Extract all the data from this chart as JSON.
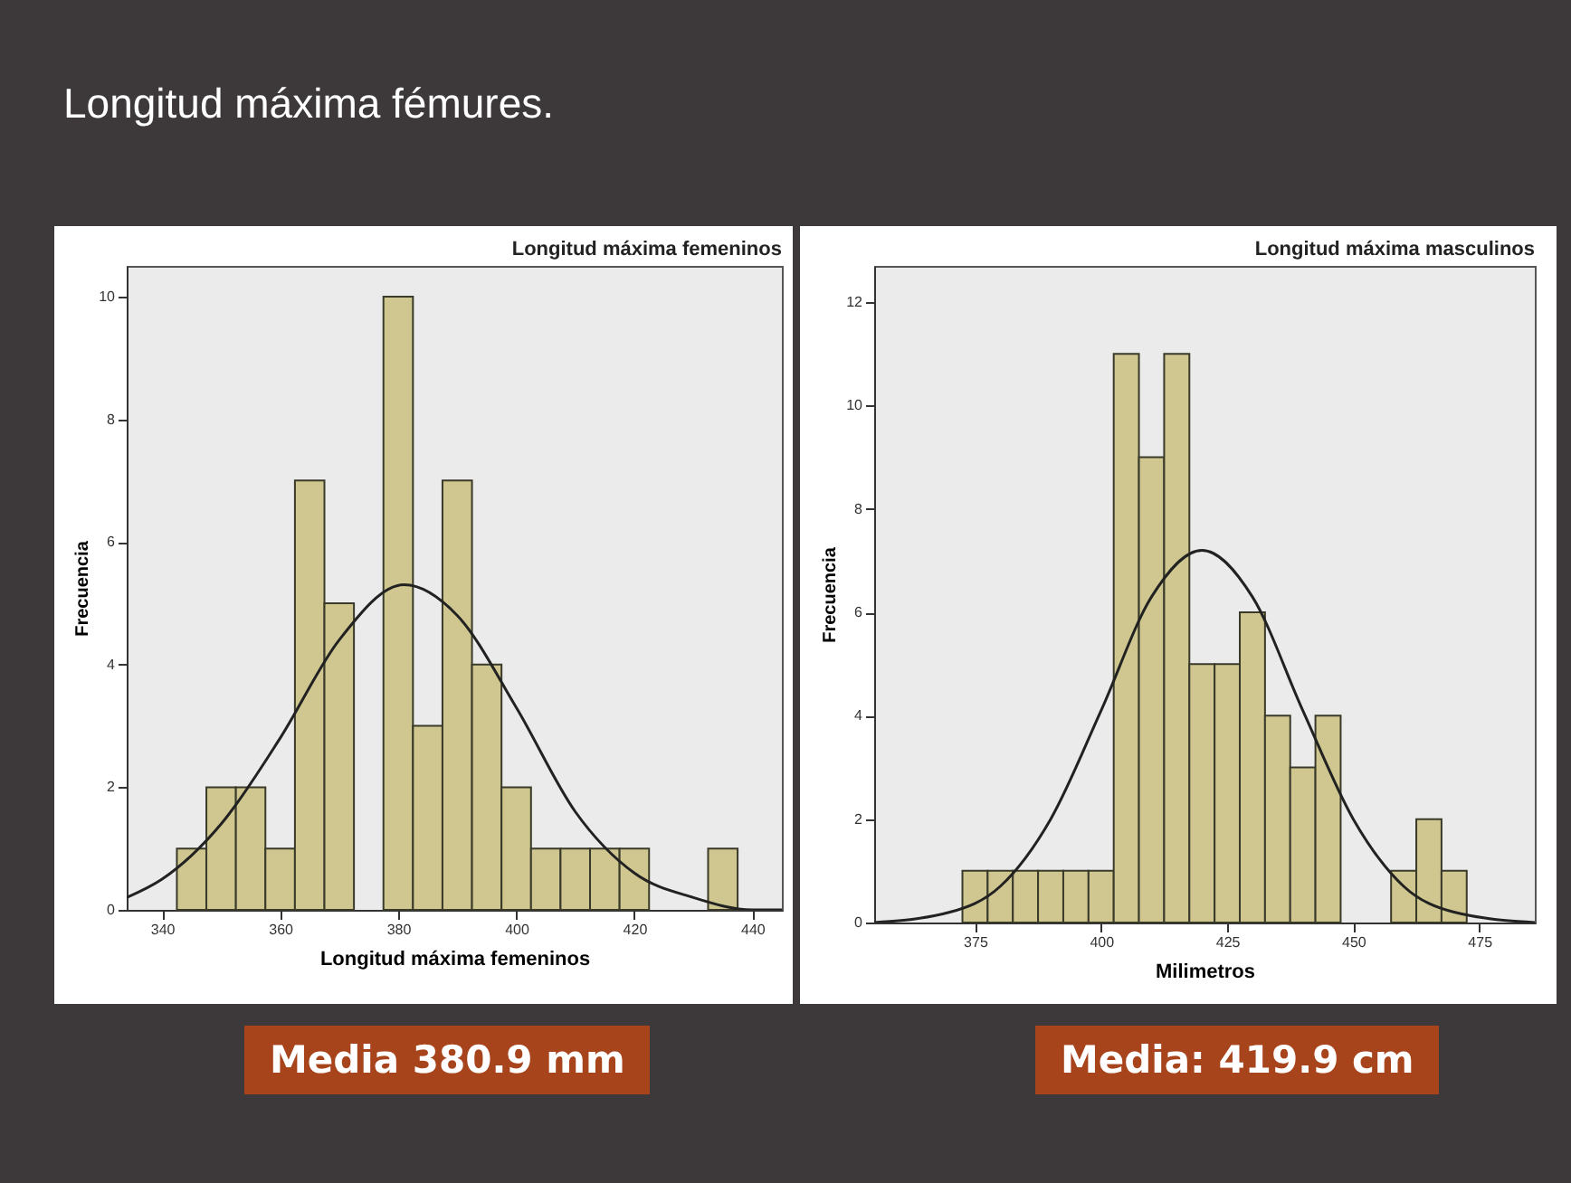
{
  "chart_data": [
    {
      "type": "histogram",
      "title": "Longitud máxima femeninos",
      "xlabel": "Longitud máxima femeninos",
      "ylabel": "Frecuencia",
      "xlim": [
        334,
        445
      ],
      "xticks": [
        340,
        360,
        380,
        400,
        420,
        440
      ],
      "ylim": [
        0,
        10.5
      ],
      "yticks": [
        0,
        2,
        4,
        6,
        8,
        10
      ],
      "grid": false,
      "annotations": [
        "Longitud máxima fémures.",
        "Media 380.9 mm"
      ],
      "series": [
        {
          "type": "histogram",
          "color": "#cfc78f",
          "bins": [
            342.5,
            347.5,
            352.5,
            357.5,
            362.5,
            367.5,
            372.5,
            377.5,
            382.5,
            387.5,
            392.5,
            397.5,
            402.5,
            407.5,
            412.5,
            417.5,
            422.5,
            427.5,
            432.5,
            437.5
          ],
          "values": [
            1,
            2,
            2,
            1,
            7,
            5,
            0,
            10,
            3,
            7,
            4,
            2,
            1,
            1,
            1,
            1,
            0,
            0,
            1
          ]
        },
        {
          "type": "line",
          "color": "#222222",
          "x": [
            334,
            340,
            350,
            360,
            370,
            381,
            390,
            400,
            410,
            420,
            430,
            440,
            445
          ],
          "values": [
            0.2,
            0.5,
            1.4,
            2.8,
            4.4,
            5.3,
            4.8,
            3.3,
            1.6,
            0.6,
            0.2,
            0.0,
            0.0
          ]
        }
      ]
    },
    {
      "type": "histogram",
      "title": "Longitud máxima masculinos",
      "xlabel": "Milimetros",
      "ylabel": "Frecuencia",
      "xlim": [
        355,
        486
      ],
      "xticks": [
        375,
        400,
        425,
        450,
        475
      ],
      "ylim": [
        0,
        12.7
      ],
      "yticks": [
        0,
        2,
        4,
        6,
        8,
        10,
        12
      ],
      "grid": false,
      "annotations": [
        "Media: 419.9 cm"
      ],
      "series": [
        {
          "type": "histogram",
          "color": "#cfc78f",
          "bins": [
            372.5,
            377.5,
            382.5,
            387.5,
            392.5,
            397.5,
            402.5,
            407.5,
            412.5,
            417.5,
            422.5,
            427.5,
            432.5,
            437.5,
            442.5,
            447.5,
            452.5,
            457.5,
            462.5,
            467.5,
            472.5
          ],
          "values": [
            1,
            1,
            1,
            1,
            1,
            1,
            11,
            9,
            11,
            5,
            5,
            6,
            4,
            3,
            4,
            0,
            0,
            1,
            2,
            1
          ]
        },
        {
          "type": "line",
          "color": "#222222",
          "x": [
            355,
            370,
            380,
            390,
            400,
            410,
            420,
            430,
            440,
            450,
            460,
            470,
            486
          ],
          "values": [
            0.0,
            0.2,
            0.7,
            2.0,
            4.1,
            6.3,
            7.2,
            6.3,
            4.1,
            2.0,
            0.7,
            0.2,
            0.0
          ]
        }
      ]
    }
  ]
}
